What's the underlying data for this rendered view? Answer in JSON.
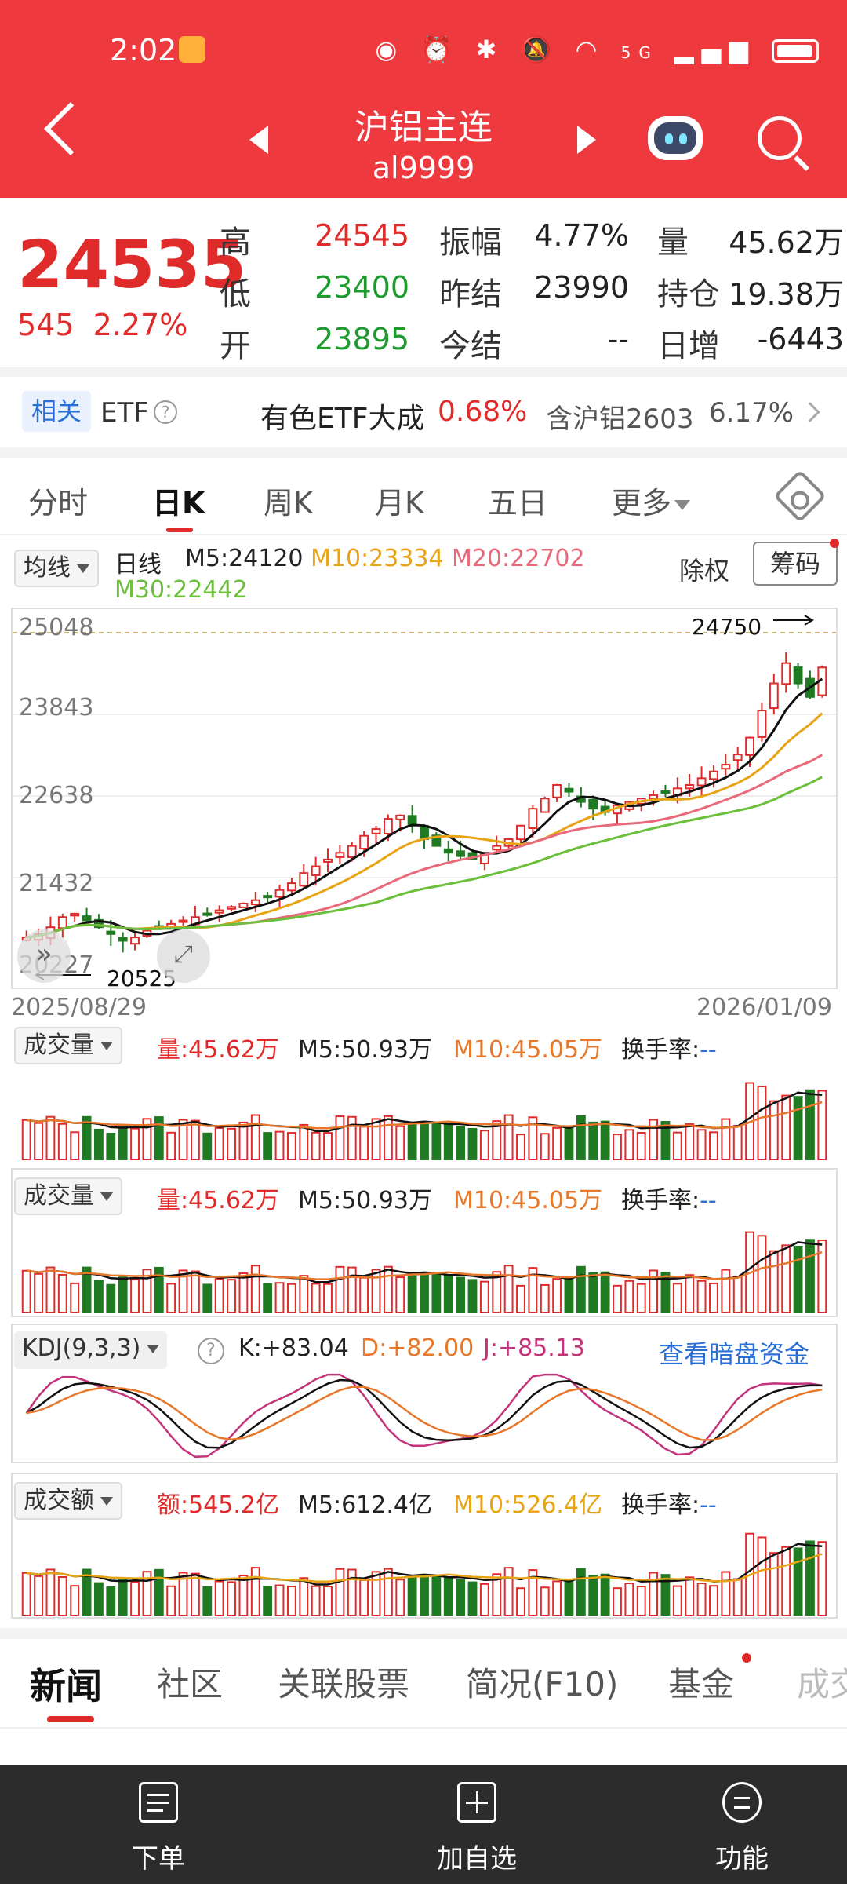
{
  "status_bar": {
    "time": "2:02",
    "icons": [
      "eye-icon",
      "alarm-icon",
      "bluetooth-icon",
      "mute-icon",
      "wifi-icon",
      "signal-icon",
      "battery-icon"
    ],
    "network": "5G"
  },
  "header": {
    "title": "沪铝主连",
    "code": "al9999"
  },
  "quote": {
    "price": "24535",
    "change": "545",
    "change_pct": "2.27%",
    "fields": [
      {
        "label": "高",
        "value": "24545",
        "color": "red"
      },
      {
        "label": "低",
        "value": "23400",
        "color": "green"
      },
      {
        "label": "开",
        "value": "23895",
        "color": "green"
      },
      {
        "label": "振幅",
        "value": "4.77%",
        "color": "dark"
      },
      {
        "label": "昨结",
        "value": "23990",
        "color": "dark"
      },
      {
        "label": "今结",
        "value": "--",
        "color": "dark"
      },
      {
        "label": "量",
        "value": "45.62万",
        "color": "dark"
      },
      {
        "label": "持仓",
        "value": "19.38万",
        "color": "dark"
      },
      {
        "label": "日增",
        "value": "-6443",
        "color": "dark"
      }
    ]
  },
  "etf": {
    "badge": "相关",
    "word": "ETF",
    "help": "?",
    "name": "有色ETF大成",
    "pct": "0.68%",
    "hold_text": "含沪铝2603",
    "hold_pct": "6.17%"
  },
  "tabs": [
    {
      "label": "分时",
      "active": false
    },
    {
      "label": "日K",
      "active": true
    },
    {
      "label": "周K",
      "active": false
    },
    {
      "label": "月K",
      "active": false
    },
    {
      "label": "五日",
      "active": false
    },
    {
      "label": "更多",
      "active": false
    }
  ],
  "kline_header": {
    "indicator": "均线",
    "period": "日线",
    "ma5": "M5:24120",
    "ma10": "M10:23334",
    "ma20": "M20:22702",
    "ma30": "M30:22442",
    "exright": "除权",
    "chips": "筹码"
  },
  "kline": {
    "y_ticks": [
      "25048",
      "23843",
      "22638",
      "21432",
      "20227"
    ],
    "date_start": "2025/08/29",
    "date_end": "2026/01/09",
    "max_label": "24750",
    "min_label": "20525",
    "colors": {
      "up": "#e02b2b",
      "down": "#1f7a22",
      "ma5": "#111111",
      "ma10": "#e8a415",
      "ma20": "#e86a7a",
      "ma30": "#6bbf3a"
    }
  },
  "volume1": {
    "title": "成交量",
    "vol": "量:45.62万",
    "m5": "M5:50.93万",
    "m10": "M10:45.05万",
    "turnover_label": "换手率:",
    "turnover": "--"
  },
  "volume2": {
    "title": "成交量",
    "vol": "量:45.62万",
    "m5": "M5:50.93万",
    "m10": "M10:45.05万",
    "turnover_label": "换手率:",
    "turnover": "--"
  },
  "kdj": {
    "title": "KDJ(9,3,3)",
    "help": "?",
    "k": "K:+83.04",
    "d": "D:+82.00",
    "j": "J:+85.13",
    "link": "查看暗盘资金"
  },
  "amount": {
    "title": "成交额",
    "amt": "额:545.2亿",
    "m5": "M5:612.4亿",
    "m10": "M10:526.4亿",
    "turnover_label": "换手率:",
    "turnover": "--"
  },
  "bottom_tabs": [
    {
      "label": "新闻",
      "active": true
    },
    {
      "label": "社区",
      "active": false
    },
    {
      "label": "关联股票",
      "active": false
    },
    {
      "label": "简况(F10)",
      "active": false
    },
    {
      "label": "基金",
      "active": false
    },
    {
      "label": "成交",
      "active": false
    }
  ],
  "bottom_bar": [
    {
      "label": "下单",
      "icon": "order-icon"
    },
    {
      "label": "加自选",
      "icon": "add-watchlist-icon"
    },
    {
      "label": "功能",
      "icon": "menu-icon"
    }
  ],
  "chart_data": {
    "type": "candlestick",
    "x_range": [
      "2025/08/29",
      "2026/01/09"
    ],
    "ylim": [
      20227,
      25048
    ],
    "series_summary": {
      "close_last": 24535,
      "high": 24545,
      "low": 23400,
      "open": 23895
    },
    "approx_closes": [
      20550,
      20600,
      20700,
      20850,
      20900,
      20800,
      20700,
      20600,
      20500,
      20550,
      20650,
      20700,
      20750,
      20800,
      20850,
      20900,
      20950,
      21000,
      21050,
      21100,
      21150,
      21250,
      21350,
      21500,
      21600,
      21700,
      21800,
      21900,
      22050,
      22150,
      22300,
      22350,
      22200,
      22000,
      21900,
      21800,
      21750,
      21700,
      21800,
      21900,
      22000,
      22200,
      22450,
      22600,
      22800,
      22700,
      22550,
      22450,
      22400,
      22500,
      22550,
      22600,
      22650,
      22700,
      22750,
      22800,
      22900,
      23000,
      23100,
      23250,
      23500,
      23900,
      24300,
      24600,
      24300,
      24100,
      24535
    ]
  }
}
